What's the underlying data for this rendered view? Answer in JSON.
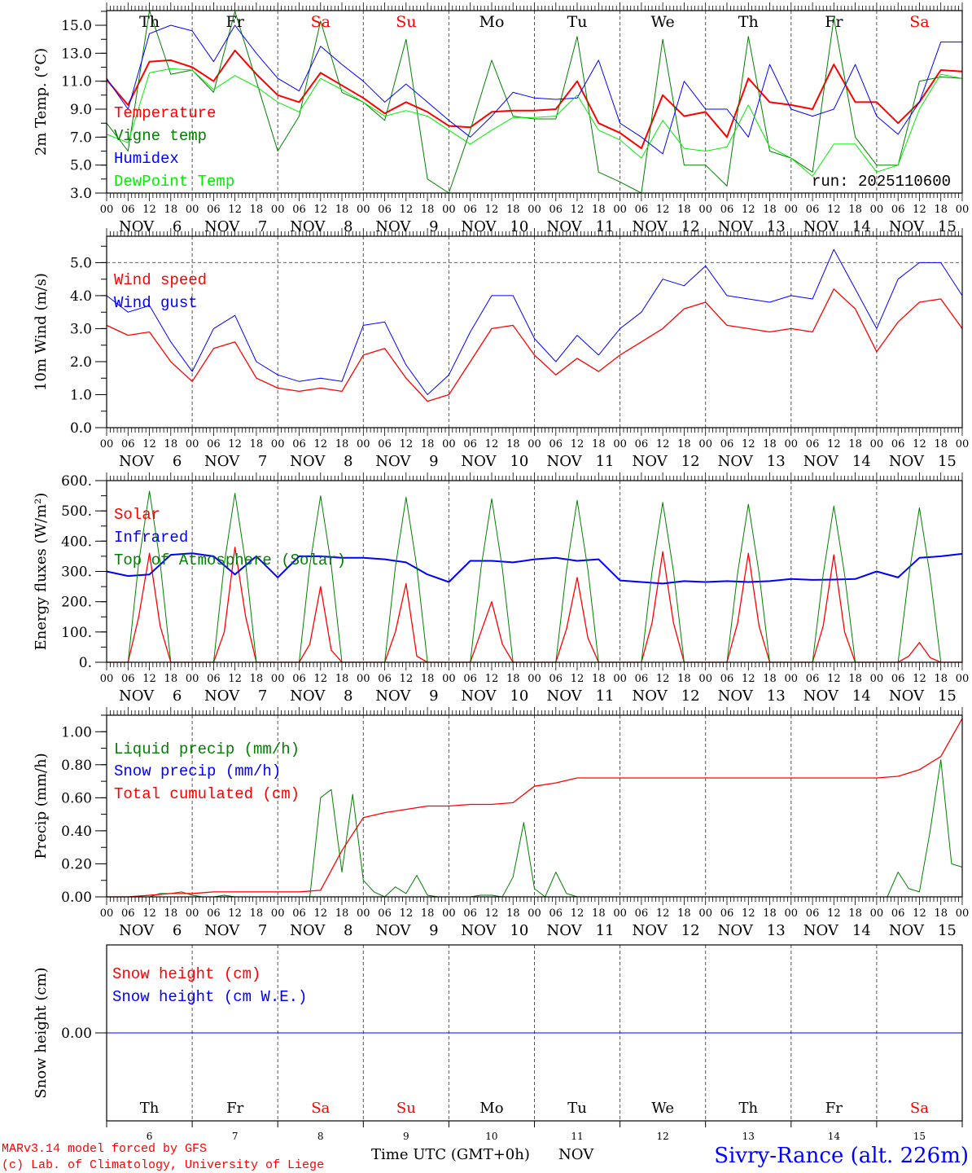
{
  "header": {
    "run_label": "run: 2025110600"
  },
  "days": {
    "names": [
      "Th",
      "Fr",
      "Sa",
      "Su",
      "Mo",
      "Tu",
      "We",
      "Th",
      "Fr",
      "Sa"
    ],
    "weekend": [
      false,
      false,
      true,
      true,
      false,
      false,
      false,
      false,
      false,
      true
    ],
    "numbers": [
      "6",
      "7",
      "8",
      "9",
      "10",
      "11",
      "12",
      "13",
      "14",
      "15"
    ],
    "month": "NOV",
    "hours": [
      "00",
      "06",
      "12",
      "18"
    ]
  },
  "colors": {
    "red": "#ff0000",
    "dark_green": "#008000",
    "blue": "#0000ff",
    "light_green": "#00ee00",
    "weekend": "#ff0000"
  },
  "chart_data": [
    {
      "type": "line",
      "ylabel": "2m Temp. (°C)",
      "ylim": [
        3.0,
        16.05
      ],
      "yticks": [
        3,
        5,
        7,
        9,
        11,
        13,
        15
      ],
      "ytick_labels": [
        "3.0",
        "5.0",
        "7.0",
        "9.0",
        "11.0",
        "13.0",
        "15.0"
      ],
      "yminor_step": 1,
      "x_start": "NOV 6 00 UTC",
      "series": [
        {
          "name": "Temperature",
          "color": "#ff0000",
          "width": 2,
          "step_hours": 6,
          "values": [
            11.1,
            9.3,
            12.4,
            12.5,
            12.0,
            11.0,
            13.2,
            11.5,
            10.0,
            9.5,
            11.6,
            10.7,
            9.8,
            8.7,
            9.5,
            8.8,
            7.8,
            7.7,
            8.8,
            8.9,
            8.9,
            9.0,
            11.0,
            8.0,
            7.3,
            6.2,
            10.0,
            8.5,
            8.8,
            7.0,
            11.2,
            9.5,
            9.3,
            9.0,
            12.2,
            9.5,
            9.5,
            8.0,
            9.5,
            11.8,
            11.7
          ]
        },
        {
          "name": "Vigne temp",
          "color": "#008000",
          "width": 1,
          "step_hours": 6,
          "values": [
            8.0,
            6.0,
            17.0,
            11.5,
            11.8,
            10.2,
            16.0,
            11.0,
            6.0,
            8.5,
            15.3,
            10.2,
            9.5,
            8.2,
            14.0,
            4.0,
            3.0,
            7.5,
            12.5,
            8.5,
            8.3,
            8.3,
            14.2,
            4.5,
            3.8,
            2.5,
            14.0,
            5.0,
            5.0,
            3.5,
            14.2,
            6.0,
            5.5,
            4.5,
            15.5,
            7.0,
            5.0,
            5.0,
            11.0,
            11.3,
            11.2
          ]
        },
        {
          "name": "Humidex",
          "color": "#0000ff",
          "width": 1,
          "step_hours": 6,
          "values": [
            11.2,
            9.0,
            14.4,
            15.0,
            14.6,
            12.4,
            15.0,
            13.0,
            11.2,
            10.3,
            13.5,
            12.2,
            11.0,
            9.5,
            10.8,
            9.5,
            8.2,
            7.0,
            8.5,
            10.2,
            9.8,
            9.7,
            9.8,
            12.5,
            8.0,
            7.0,
            5.8,
            11.0,
            9.0,
            9.0,
            7.0,
            12.2,
            9.0,
            8.5,
            9.0,
            12.2,
            8.5,
            7.2,
            9.5,
            13.8,
            13.8
          ]
        },
        {
          "name": "DewPoint Temp",
          "color": "#00ee00",
          "width": 1,
          "step_hours": 6,
          "values": [
            7.2,
            6.6,
            11.6,
            11.9,
            11.8,
            10.4,
            11.4,
            10.6,
            9.5,
            8.8,
            11.2,
            10.4,
            9.5,
            8.5,
            8.9,
            8.5,
            7.5,
            6.5,
            7.5,
            8.4,
            8.4,
            8.5,
            10.0,
            7.5,
            6.8,
            5.5,
            8.2,
            6.2,
            6.0,
            6.3,
            9.3,
            6.3,
            5.5,
            4.2,
            6.5,
            6.5,
            4.5,
            5.0,
            9.0,
            11.5,
            11.2
          ]
        }
      ]
    },
    {
      "type": "line",
      "ylabel": "10m Wind (m/s)",
      "ylim": [
        0,
        5.8
      ],
      "yticks": [
        0,
        1,
        2,
        3,
        4,
        5
      ],
      "ytick_labels": [
        "0.0",
        "1.0",
        "2.0",
        "3.0",
        "4.0",
        "5.0"
      ],
      "yminor_step": 0.5,
      "reference_line": 5.0,
      "series": [
        {
          "name": "Wind speed",
          "color": "#ff0000",
          "width": 1.3,
          "step_hours": 6,
          "values": [
            3.1,
            2.8,
            2.9,
            2.0,
            1.4,
            2.4,
            2.6,
            1.5,
            1.2,
            1.1,
            1.2,
            1.1,
            2.2,
            2.4,
            1.5,
            0.8,
            1.0,
            2.0,
            3.0,
            3.1,
            2.2,
            1.6,
            2.1,
            1.7,
            2.2,
            2.6,
            3.0,
            3.6,
            3.8,
            3.1,
            3.0,
            2.9,
            3.0,
            2.9,
            4.2,
            3.6,
            2.3,
            3.2,
            3.8,
            3.9,
            3.0
          ]
        },
        {
          "name": "Wind gust",
          "color": "#0000ff",
          "width": 1,
          "step_hours": 6,
          "values": [
            4.0,
            3.5,
            3.7,
            2.6,
            1.7,
            3.0,
            3.4,
            2.0,
            1.6,
            1.4,
            1.5,
            1.4,
            3.1,
            3.2,
            1.9,
            1.0,
            1.6,
            2.9,
            4.0,
            4.0,
            2.7,
            2.0,
            2.8,
            2.2,
            3.0,
            3.5,
            4.5,
            4.3,
            4.9,
            4.0,
            3.9,
            3.8,
            4.0,
            3.9,
            5.4,
            4.2,
            3.0,
            4.5,
            5.0,
            5.0,
            4.0
          ]
        }
      ]
    },
    {
      "type": "line",
      "ylabel": "Energy fluxes (W/m²)",
      "ylim": [
        0,
        600
      ],
      "yticks": [
        0,
        100,
        200,
        300,
        400,
        500,
        600
      ],
      "ytick_labels": [
        "0.",
        "100.",
        "200.",
        "300.",
        "400.",
        "500.",
        "600."
      ],
      "yminor_step": 50,
      "series": [
        {
          "name": "Solar",
          "color": "#ff0000",
          "width": 1.3,
          "step_hours": 3,
          "values": [
            0,
            0,
            0,
            150,
            360,
            120,
            0,
            0,
            0,
            0,
            0,
            100,
            380,
            150,
            0,
            0,
            0,
            0,
            0,
            60,
            250,
            40,
            0,
            0,
            0,
            0,
            0,
            100,
            260,
            20,
            0,
            0,
            0,
            0,
            0,
            100,
            200,
            60,
            0,
            0,
            0,
            0,
            0,
            110,
            280,
            80,
            0,
            0,
            0,
            0,
            0,
            130,
            365,
            130,
            0,
            0,
            0,
            0,
            0,
            130,
            360,
            120,
            0,
            0,
            0,
            0,
            0,
            120,
            355,
            100,
            0,
            0,
            0,
            0,
            0,
            20,
            65,
            15,
            0,
            0,
            0
          ]
        },
        {
          "name": "Infrared",
          "color": "#0000ff",
          "width": 2,
          "step_hours": 6,
          "values": [
            300,
            285,
            290,
            355,
            360,
            350,
            290,
            350,
            280,
            350,
            350,
            345,
            345,
            340,
            330,
            290,
            265,
            335,
            335,
            330,
            340,
            345,
            335,
            340,
            270,
            265,
            260,
            268,
            265,
            268,
            265,
            268,
            275,
            272,
            273,
            275,
            300,
            280,
            345,
            350,
            358
          ]
        },
        {
          "name": "Top of Atmosphere (Solar)",
          "color": "#008000",
          "width": 1,
          "step_hours": 3,
          "values": [
            0,
            0,
            0,
            330,
            565,
            330,
            0,
            0,
            0,
            0,
            0,
            325,
            558,
            325,
            0,
            0,
            0,
            0,
            0,
            320,
            550,
            320,
            0,
            0,
            0,
            0,
            0,
            315,
            545,
            315,
            0,
            0,
            0,
            0,
            0,
            310,
            540,
            310,
            0,
            0,
            0,
            0,
            0,
            305,
            535,
            305,
            0,
            0,
            0,
            0,
            0,
            300,
            528,
            300,
            0,
            0,
            0,
            0,
            0,
            295,
            522,
            295,
            0,
            0,
            0,
            0,
            0,
            290,
            516,
            290,
            0,
            0,
            0,
            0,
            0,
            285,
            510,
            285,
            0,
            0,
            0
          ]
        }
      ]
    },
    {
      "type": "line",
      "ylabel": "Precip (mm/h)",
      "ylim": [
        0,
        1.1
      ],
      "yticks": [
        0,
        0.2,
        0.4,
        0.6,
        0.8,
        1.0
      ],
      "ytick_labels": [
        "0.00",
        "0.20",
        "0.40",
        "0.60",
        "0.80",
        "1.00"
      ],
      "yminor_step": 0.1,
      "series": [
        {
          "name": "Liquid precip (mm/h)",
          "color": "#008000",
          "width": 1,
          "step_hours": 3,
          "values": [
            0,
            0,
            0,
            0,
            0,
            0.02,
            0.02,
            0.03,
            0.01,
            0,
            0,
            0.01,
            0,
            0,
            0,
            0,
            0,
            0,
            0,
            0,
            0.6,
            0.65,
            0.15,
            0.62,
            0.1,
            0.03,
            0,
            0.06,
            0.02,
            0.13,
            0.01,
            0,
            0,
            0,
            0,
            0.01,
            0.01,
            0,
            0.12,
            0.45,
            0.05,
            0,
            0.15,
            0.02,
            0,
            0,
            0,
            0,
            0,
            0,
            0,
            0,
            0,
            0,
            0,
            0,
            0,
            0,
            0,
            0,
            0,
            0,
            0,
            0,
            0,
            0,
            0,
            0,
            0,
            0,
            0,
            0,
            0,
            0,
            0.15,
            0.05,
            0.03,
            0.4,
            0.83,
            0.2,
            0.18
          ]
        },
        {
          "name": "Snow precip (mm/h)",
          "color": "#0000ff",
          "width": 1,
          "step_hours": 24,
          "values": [
            0,
            0,
            0,
            0,
            0,
            0,
            0,
            0,
            0,
            0,
            0
          ]
        },
        {
          "name": "Total cumulated (cm)",
          "color": "#ff0000",
          "width": 1.3,
          "step_hours": 6,
          "values": [
            0,
            0,
            0.01,
            0.02,
            0.02,
            0.03,
            0.03,
            0.03,
            0.03,
            0.03,
            0.04,
            0.28,
            0.48,
            0.51,
            0.53,
            0.55,
            0.55,
            0.56,
            0.56,
            0.57,
            0.67,
            0.69,
            0.72,
            0.72,
            0.72,
            0.72,
            0.72,
            0.72,
            0.72,
            0.72,
            0.72,
            0.72,
            0.72,
            0.72,
            0.72,
            0.72,
            0.72,
            0.73,
            0.77,
            0.85,
            1.08
          ]
        }
      ]
    },
    {
      "type": "line",
      "ylabel": "Snow height (cm)",
      "ylim": [
        -1,
        1
      ],
      "yticks": [
        0
      ],
      "ytick_labels": [
        "0.00"
      ],
      "series": [
        {
          "name": "Snow height (cm)",
          "color": "#ff0000",
          "width": 1,
          "step_hours": 24,
          "values": [
            0,
            0,
            0,
            0,
            0,
            0,
            0,
            0,
            0,
            0,
            0
          ]
        },
        {
          "name": "Snow height (cm W.E.)",
          "color": "#0000ff",
          "width": 1,
          "step_hours": 24,
          "values": [
            0,
            0,
            0,
            0,
            0,
            0,
            0,
            0,
            0,
            0,
            0
          ]
        }
      ]
    }
  ],
  "footer": {
    "model_label": "MARv3.14 model forced by GFS",
    "copyright": "(c) Lab. of Climatology, University of Liege",
    "xlabel": "Time UTC (GMT+0h)",
    "month": "NOV",
    "station": "Sivry-Rance (alt. 226m)"
  }
}
